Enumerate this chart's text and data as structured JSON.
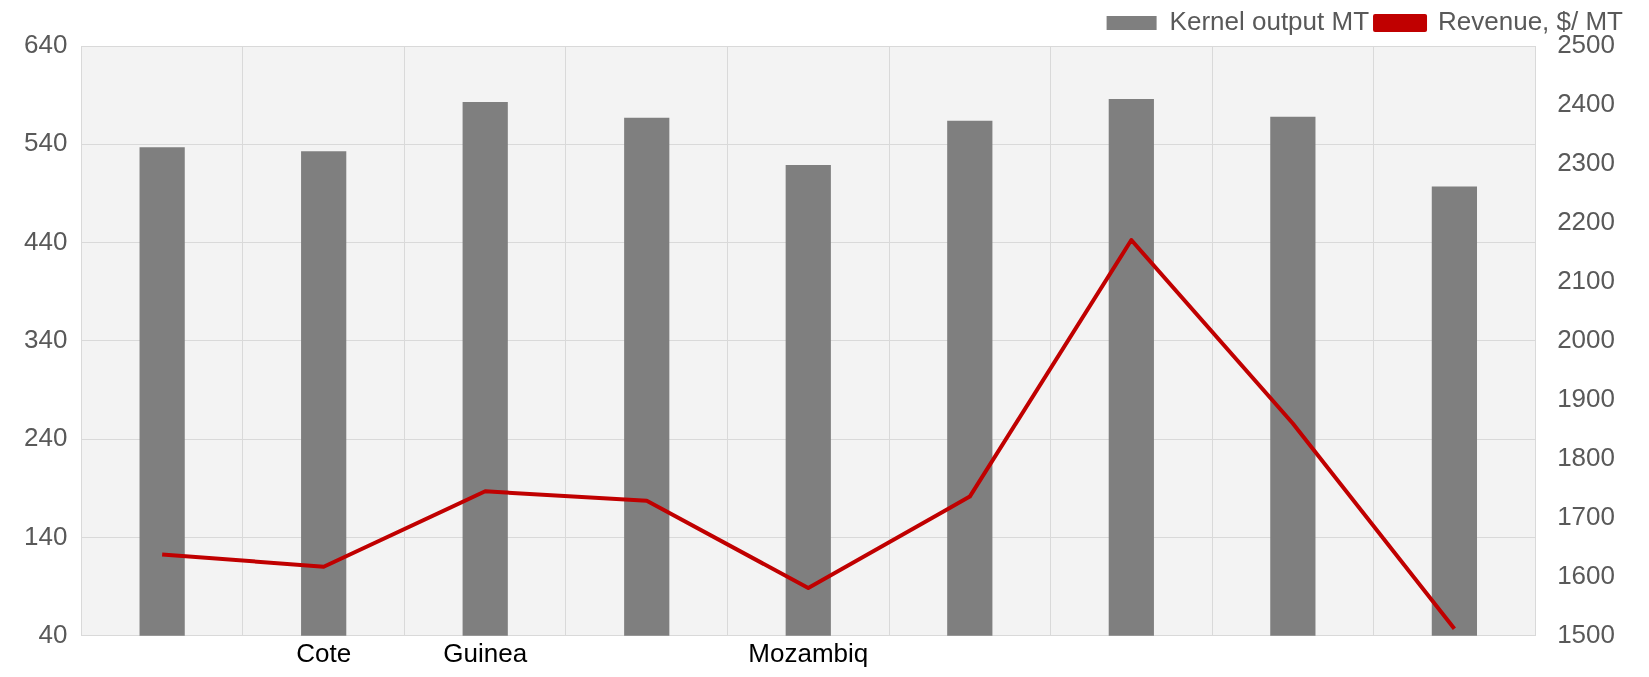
{
  "chart_data": {
    "type": "bar",
    "categories": [
      null,
      "Cote",
      "Guinea",
      null,
      "Mozambiq",
      null,
      null,
      null,
      null
    ],
    "series": [
      {
        "name": "Kernel output MT",
        "color": "#7f7f7f",
        "values": [
          537,
          533,
          583,
          567,
          519,
          564,
          586,
          568,
          497
        ]
      },
      {
        "name": "Revenue, $/ MT",
        "type": "line",
        "axis": "y2",
        "color": "#c00000",
        "values": [
          1638,
          1617,
          1745,
          1729,
          1581,
          1736,
          2171,
          1860,
          1512
        ]
      }
    ],
    "ylim": [
      40,
      640
    ],
    "yticks": [
      40,
      140,
      240,
      340,
      440,
      540,
      640
    ],
    "y2lim": [
      1500,
      2500
    ],
    "y2ticks": [
      1500,
      1600,
      1700,
      1800,
      1900,
      2000,
      2100,
      2200,
      2300,
      2400,
      2500
    ],
    "grid": true,
    "legend": "top right",
    "marker": "none"
  }
}
